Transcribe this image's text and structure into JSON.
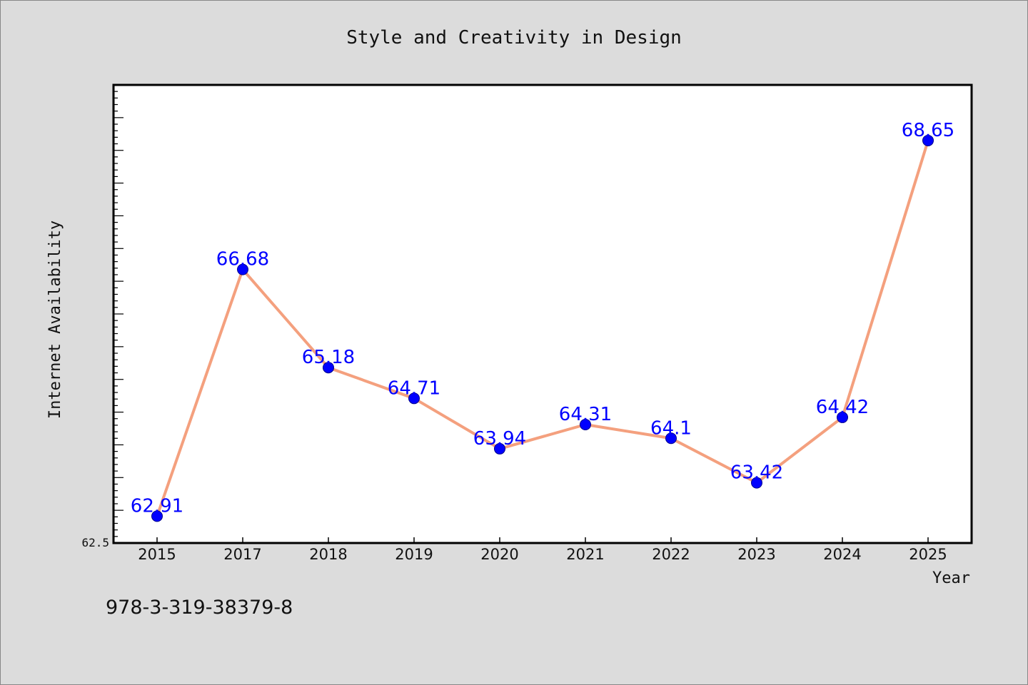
{
  "chart_data": {
    "type": "line",
    "title": "Style and Creativity in Design",
    "xlabel": "Year",
    "ylabel": "Internet Availability",
    "categories": [
      "2015",
      "2017",
      "2018",
      "2019",
      "2020",
      "2021",
      "2022",
      "2023",
      "2024",
      "2025"
    ],
    "series": [
      {
        "values": [
          62.91,
          66.68,
          65.18,
          64.71,
          63.94,
          64.31,
          64.1,
          63.42,
          64.42,
          68.65
        ]
      }
    ],
    "data_labels": [
      "62.91",
      "66.68",
      "65.18",
      "64.71",
      "63.94",
      "64.31",
      "64.1",
      "63.42",
      "64.42",
      "68.65"
    ],
    "ylim": [
      62.5,
      69.5
    ],
    "y_tick_labels": [
      "62.5"
    ],
    "grid": false,
    "legend": "none",
    "colors": {
      "line": "#f4a07e",
      "marker": "#0000ff",
      "data_label": "#0000ff",
      "background": "#dcdcdc",
      "plot_background": "#ffffff"
    }
  },
  "footer": {
    "isbn": "978-3-319-38379-8"
  }
}
